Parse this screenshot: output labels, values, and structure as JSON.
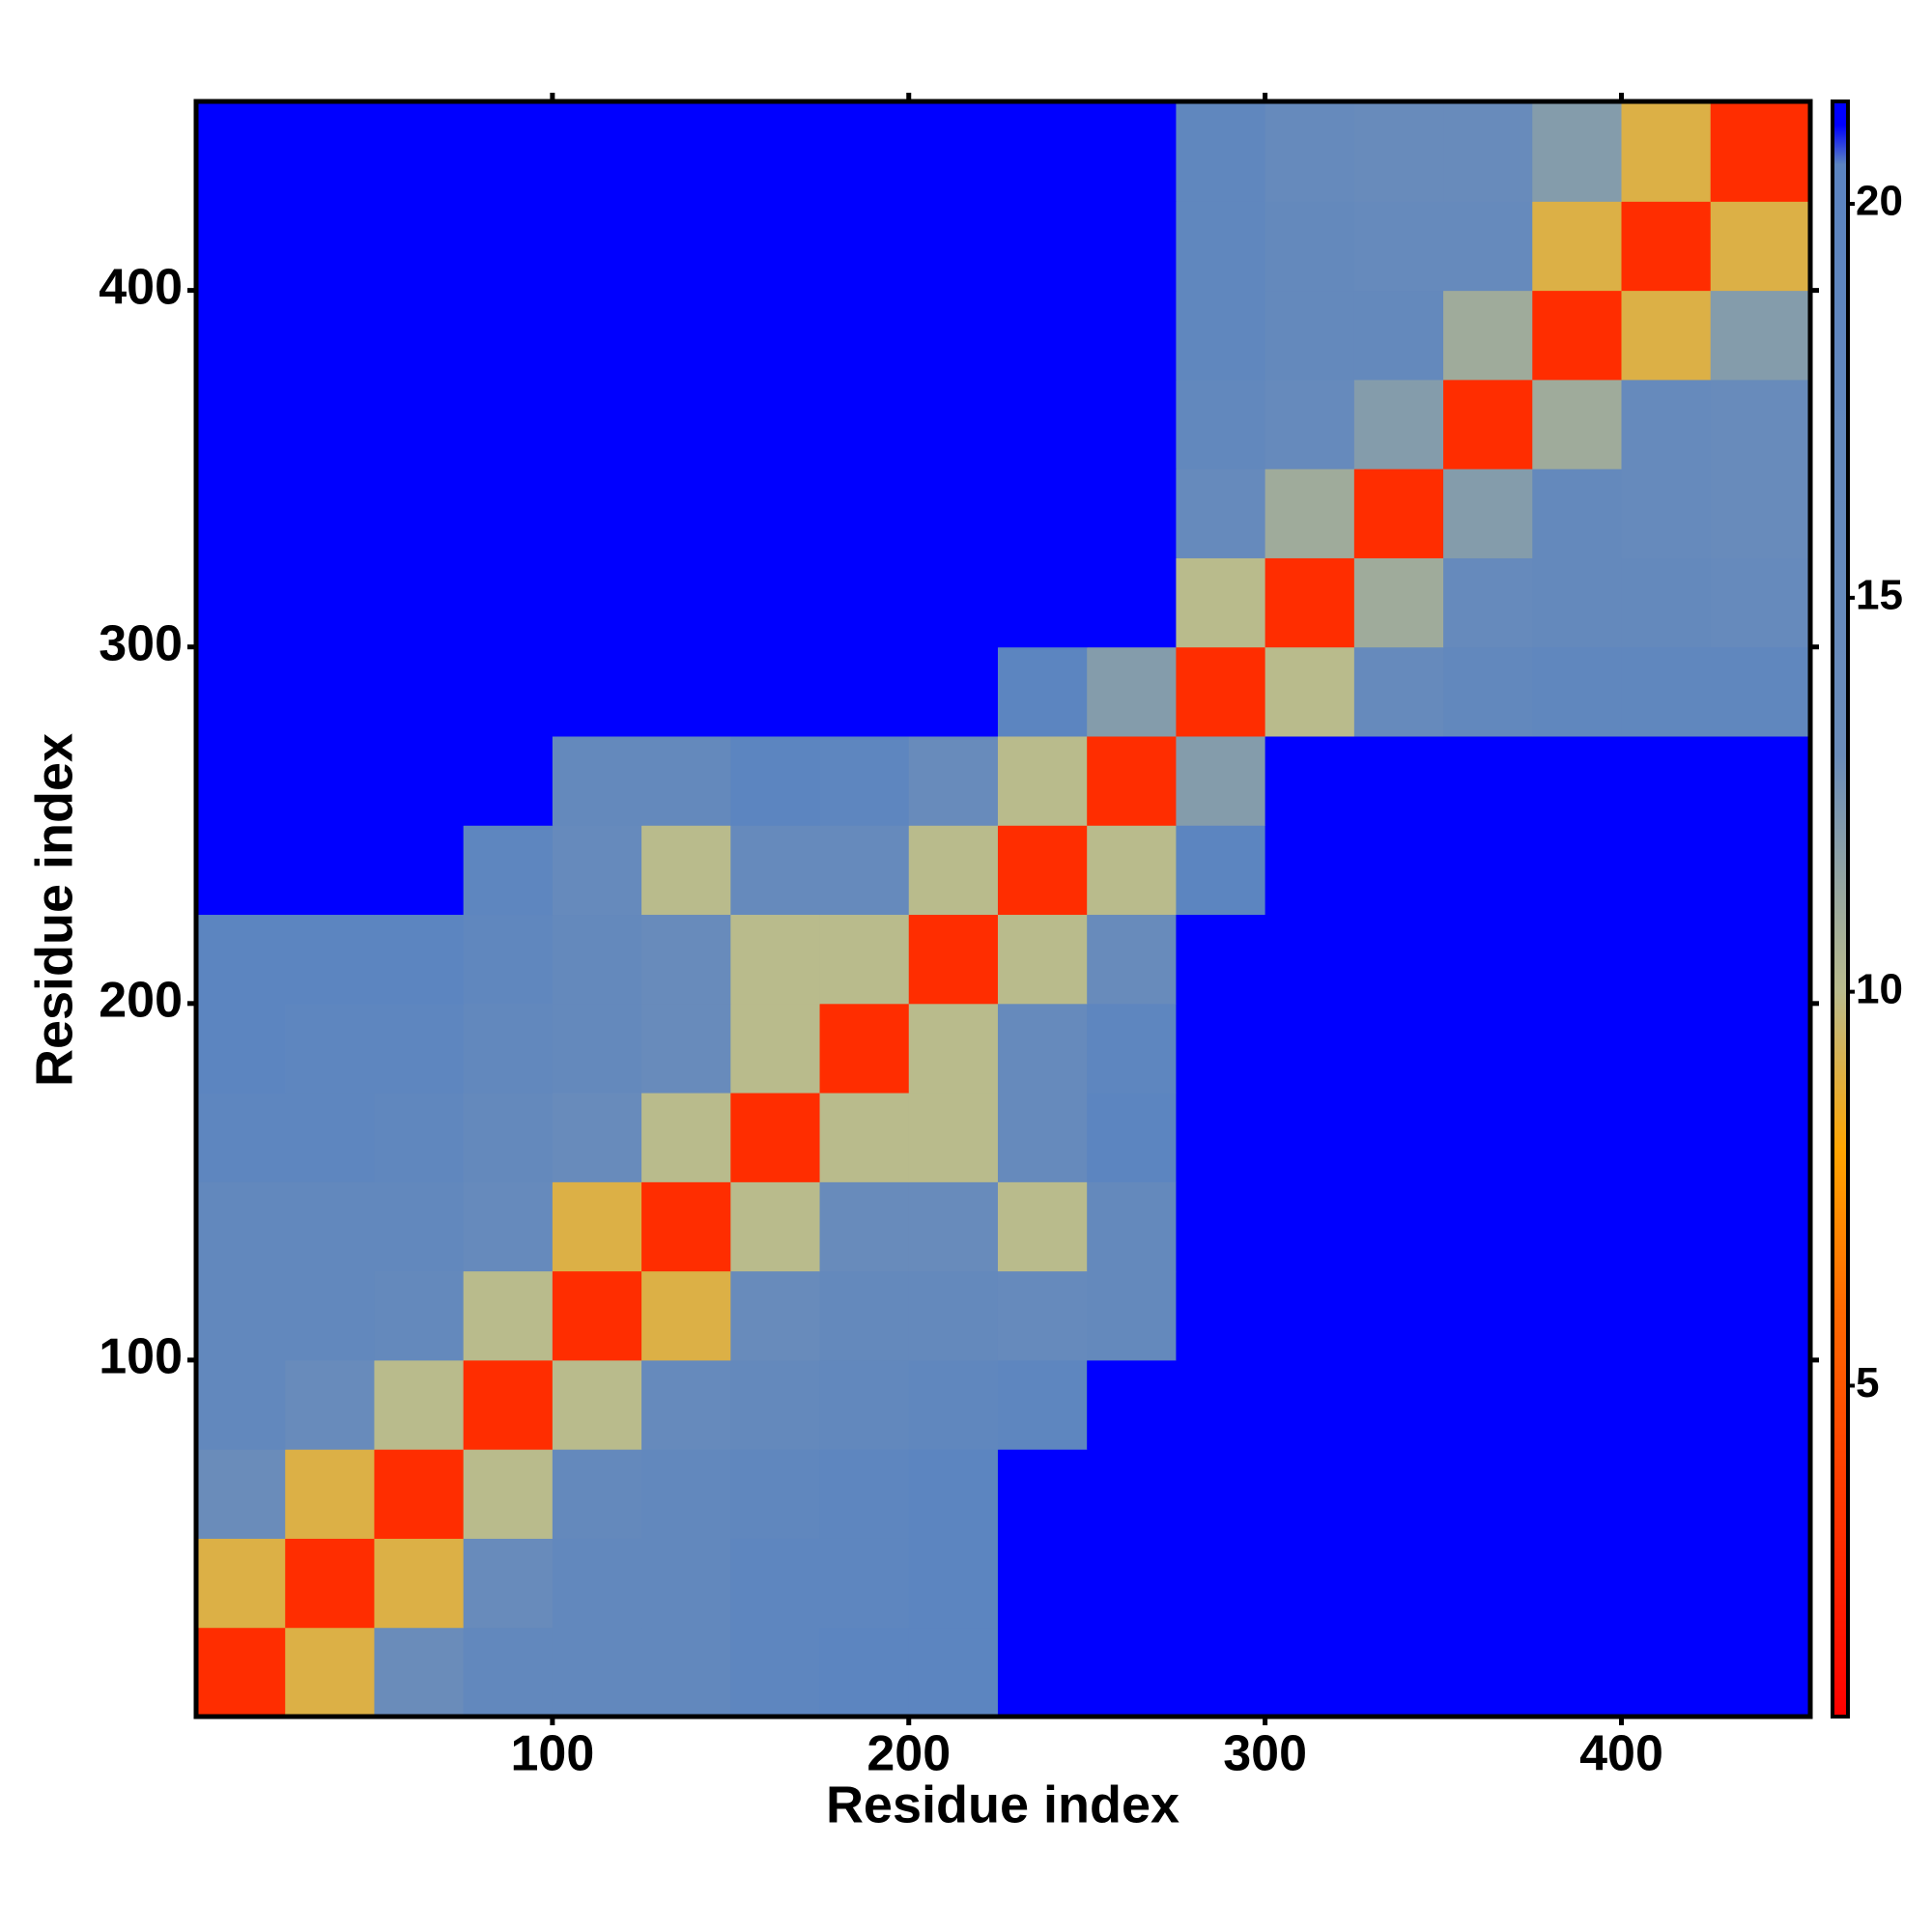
{
  "chart_data": {
    "type": "heatmap",
    "xlabel": "Residue index",
    "ylabel": "Residue index",
    "x_bins": [
      0,
      25,
      50,
      75,
      100,
      125,
      150,
      175,
      200,
      225,
      250,
      275,
      300,
      325,
      350,
      375,
      400,
      425,
      453
    ],
    "y_bins": [
      0,
      25,
      50,
      75,
      100,
      125,
      150,
      175,
      200,
      225,
      250,
      275,
      300,
      325,
      350,
      375,
      400,
      425,
      453
    ],
    "z": [
      [
        3,
        9,
        13,
        17,
        17,
        17,
        19,
        20,
        20,
        21,
        21,
        21,
        21,
        21,
        21,
        21,
        21,
        21
      ],
      [
        9,
        3,
        9,
        14,
        17,
        17,
        19,
        19,
        20,
        21,
        21,
        21,
        21,
        21,
        21,
        21,
        21,
        21
      ],
      [
        13,
        9,
        3,
        10,
        16,
        17,
        18,
        19,
        20,
        21,
        21,
        21,
        21,
        21,
        21,
        21,
        21,
        21
      ],
      [
        17,
        14,
        10,
        3,
        10,
        15,
        16,
        17,
        18,
        19,
        21,
        21,
        21,
        21,
        21,
        21,
        21,
        21
      ],
      [
        17,
        17,
        16,
        10,
        3,
        9,
        14,
        16,
        16,
        15,
        16,
        21,
        21,
        21,
        21,
        21,
        21,
        21
      ],
      [
        17,
        17,
        17,
        15,
        9,
        3,
        10,
        14,
        14,
        10,
        16,
        21,
        21,
        21,
        21,
        21,
        21,
        21
      ],
      [
        19,
        19,
        18,
        16,
        14,
        10,
        3,
        10,
        10,
        15,
        20,
        21,
        21,
        21,
        21,
        21,
        21,
        21
      ],
      [
        20,
        19,
        19,
        17,
        16,
        14,
        10,
        3,
        10,
        15,
        19,
        21,
        21,
        21,
        21,
        21,
        21,
        21
      ],
      [
        20,
        20,
        20,
        18,
        16,
        14,
        10,
        10,
        3,
        10,
        14,
        21,
        21,
        21,
        21,
        21,
        21,
        21
      ],
      [
        21,
        21,
        21,
        19,
        15,
        10,
        15,
        15,
        10,
        3,
        10,
        20,
        21,
        21,
        21,
        21,
        21,
        21
      ],
      [
        21,
        21,
        21,
        21,
        16,
        16,
        20,
        19,
        14,
        10,
        3,
        12,
        21,
        21,
        21,
        21,
        21,
        21
      ],
      [
        21,
        21,
        21,
        21,
        21,
        21,
        21,
        21,
        21,
        20,
        12,
        3,
        10,
        15,
        17,
        18,
        18,
        18
      ],
      [
        21,
        21,
        21,
        21,
        21,
        21,
        21,
        21,
        21,
        21,
        21,
        10,
        3,
        11,
        15,
        16,
        16,
        15
      ],
      [
        21,
        21,
        21,
        21,
        21,
        21,
        21,
        21,
        21,
        21,
        21,
        15,
        11,
        3,
        12,
        16,
        15,
        14
      ],
      [
        21,
        21,
        21,
        21,
        21,
        21,
        21,
        21,
        21,
        21,
        21,
        17,
        15,
        12,
        3,
        11,
        15,
        14
      ],
      [
        21,
        21,
        21,
        21,
        21,
        21,
        21,
        21,
        21,
        21,
        21,
        18,
        16,
        16,
        11,
        3,
        9,
        12
      ],
      [
        21,
        21,
        21,
        21,
        21,
        21,
        21,
        21,
        21,
        21,
        21,
        18,
        16,
        15,
        15,
        9,
        3,
        9
      ],
      [
        21,
        21,
        21,
        21,
        21,
        21,
        21,
        21,
        21,
        21,
        21,
        18,
        15,
        14,
        14,
        12,
        9,
        3
      ]
    ],
    "xlim": [
      0,
      453
    ],
    "ylim": [
      0,
      453
    ],
    "xticks": [
      100,
      200,
      300,
      400
    ],
    "yticks": [
      100,
      200,
      300,
      400
    ],
    "clim": [
      0.8,
      21.3
    ],
    "cticks": [
      5,
      10,
      15,
      20
    ],
    "colorscale": [
      {
        "value": 0.8,
        "color": "#ff0000"
      },
      {
        "value": 6,
        "color": "#ff6a00"
      },
      {
        "value": 8,
        "color": "#ffa500"
      },
      {
        "value": 10,
        "color": "#b9bb8c"
      },
      {
        "value": 13,
        "color": "#6a8cba"
      },
      {
        "value": 20.5,
        "color": "#5b84c0"
      },
      {
        "value": 21,
        "color": "#0000ff"
      },
      {
        "value": 21.3,
        "color": "#0000ff"
      }
    ]
  }
}
